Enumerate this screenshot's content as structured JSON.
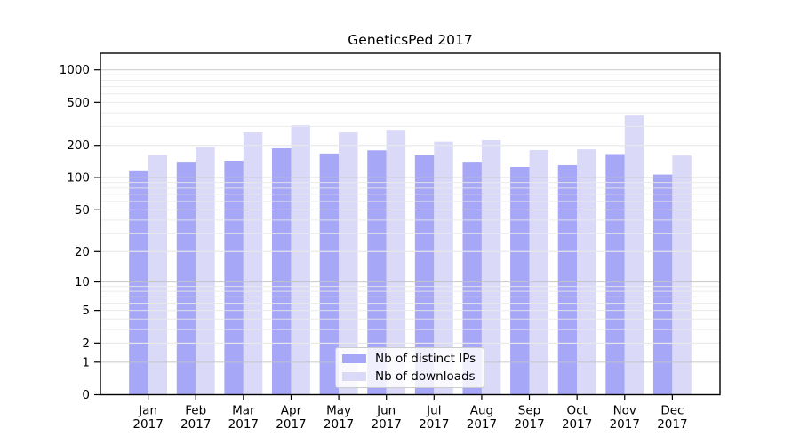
{
  "title": "GeneticsPed 2017",
  "chart_data": {
    "type": "bar",
    "title": "GeneticsPed 2017",
    "categories": [
      "Jan",
      "Feb",
      "Mar",
      "Apr",
      "May",
      "Jun",
      "Jul",
      "Aug",
      "Sep",
      "Oct",
      "Nov",
      "Dec"
    ],
    "year": "2017",
    "series": [
      {
        "name": "Nb of distinct IPs",
        "color": "#a7a7f7",
        "values": [
          115,
          141,
          144,
          188,
          168,
          180,
          162,
          141,
          126,
          131,
          166,
          107
        ]
      },
      {
        "name": "Nb of downloads",
        "color": "#dadaf8",
        "values": [
          163,
          193,
          264,
          307,
          264,
          279,
          216,
          223,
          181,
          184,
          378,
          161
        ]
      }
    ],
    "xlabel": "",
    "ylabel": "",
    "yscale": "log1p",
    "ylim": [
      0,
      1424
    ],
    "yticks": [
      0,
      1,
      2,
      5,
      10,
      20,
      50,
      100,
      200,
      500,
      1000
    ],
    "grid": true,
    "grid_major": [
      1,
      10,
      100,
      1000
    ],
    "grid_minor": [
      2,
      3,
      4,
      6,
      7,
      8,
      9,
      20,
      30,
      40,
      60,
      70,
      80,
      90,
      200,
      300,
      400,
      600,
      700,
      800,
      900
    ],
    "grid_light": [
      2,
      5,
      20,
      50,
      200,
      500
    ],
    "legend_position": "bottom-center"
  },
  "legend": {
    "items": [
      {
        "label": "Nb of distinct IPs"
      },
      {
        "label": "Nb of downloads"
      }
    ]
  },
  "colors": {
    "distinct_ips": "#a7a7f7",
    "downloads": "#dadaf8",
    "grid_major": "#c3c3c3",
    "grid_minor": "#e9e9e9",
    "spine": "#000000"
  }
}
